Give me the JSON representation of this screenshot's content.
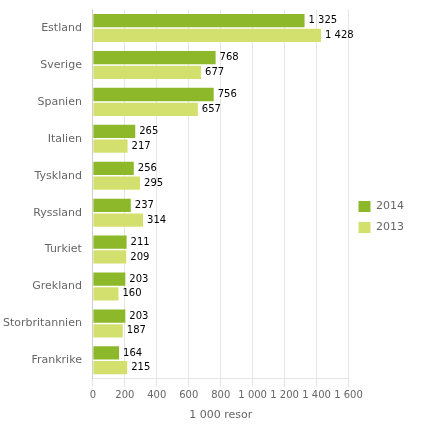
{
  "chart_data": {
    "type": "bar",
    "orientation": "horizontal",
    "categories": [
      "Frankrike",
      "Storbritannien",
      "Grekland",
      "Turkiet",
      "Ryssland",
      "Tyskland",
      "Italien",
      "Spanien",
      "Sverige",
      "Estland"
    ],
    "series": [
      {
        "name": "2014",
        "color": "#8db829",
        "values": [
          164,
          203,
          203,
          211,
          237,
          256,
          265,
          756,
          768,
          1325
        ],
        "value_labels": [
          "164",
          "203",
          "203",
          "211",
          "237",
          "256",
          "265",
          "756",
          "768",
          "1 325"
        ]
      },
      {
        "name": "2013",
        "color": "#d4e06e",
        "values": [
          215,
          187,
          160,
          209,
          314,
          295,
          217,
          657,
          677,
          1428
        ],
        "value_labels": [
          "215",
          "187",
          "160",
          "209",
          "314",
          "295",
          "217",
          "657",
          "677",
          "1 428"
        ]
      }
    ],
    "xlabel": "1 000 resor",
    "xlim": [
      0,
      1600
    ],
    "xticks": [
      0,
      200,
      400,
      600,
      800,
      {
        "value": 1000,
        "label": "1 000"
      },
      {
        "value": 1200,
        "label": "1 200"
      },
      {
        "value": 1400,
        "label": "1 400"
      },
      {
        "value": 1600,
        "label": "1 600"
      }
    ],
    "grid": true,
    "legend": "right",
    "data_labels": true
  }
}
